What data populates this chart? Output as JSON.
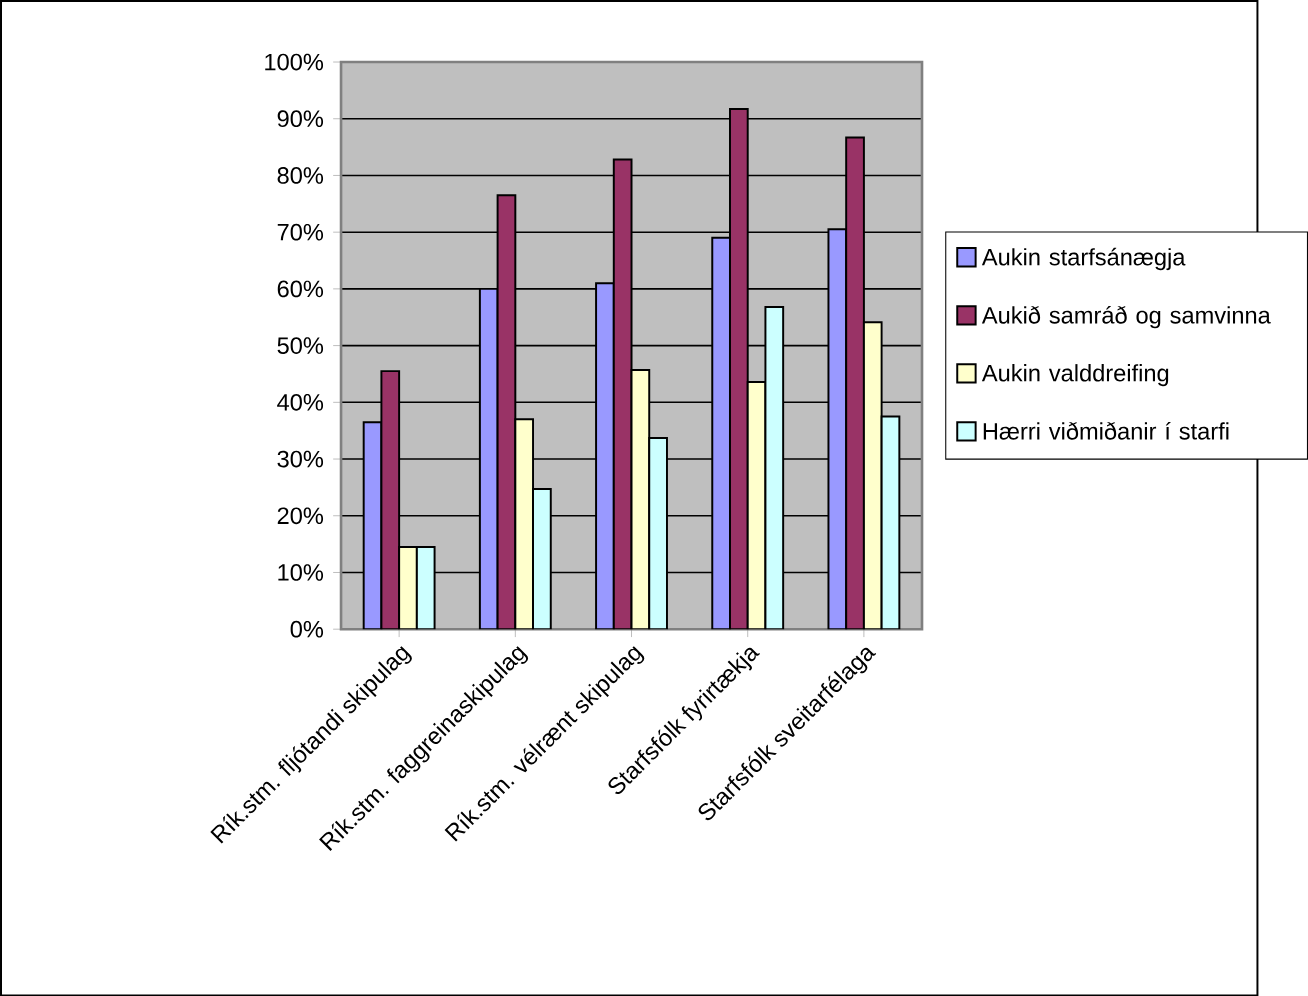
{
  "chart_data": {
    "type": "bar",
    "categories": [
      "Rík.stm. fljótandi skipulag",
      "Rík.stm. faggreinaskipulag",
      "Rík.stm. vélrænt skipulag",
      "Starfsfólk fyrirtækja",
      "Starfsfólk sveitarfélaga"
    ],
    "series": [
      {
        "name": "Aukin starfsánægja",
        "color": "#9999ff",
        "values": [
          36.5,
          60,
          61,
          69,
          70.5
        ]
      },
      {
        "name": "Aukið samráð og samvinna",
        "color": "#993366",
        "values": [
          45.5,
          76.5,
          82.8,
          91.7,
          86.7
        ]
      },
      {
        "name": "Aukin valddreifing",
        "color": "#ffffcc",
        "values": [
          14.5,
          37,
          45.7,
          43.6,
          54.1
        ]
      },
      {
        "name": "Hærri viðmiðanir í starfi",
        "color": "#ccffff",
        "values": [
          14.5,
          24.7,
          33.7,
          56.8,
          37.5
        ]
      }
    ],
    "ylim": [
      0,
      100
    ],
    "yticks": [
      {
        "value": 0,
        "label": "0%"
      },
      {
        "value": 10,
        "label": "10%"
      },
      {
        "value": 20,
        "label": "20%"
      },
      {
        "value": 30,
        "label": "30%"
      },
      {
        "value": 40,
        "label": "40%"
      },
      {
        "value": 50,
        "label": "50%"
      },
      {
        "value": 60,
        "label": "60%"
      },
      {
        "value": 70,
        "label": "70%"
      },
      {
        "value": 80,
        "label": "80%"
      },
      {
        "value": 90,
        "label": "90%"
      },
      {
        "value": 100,
        "label": "100%"
      }
    ],
    "grid": "y",
    "legend": "right"
  }
}
